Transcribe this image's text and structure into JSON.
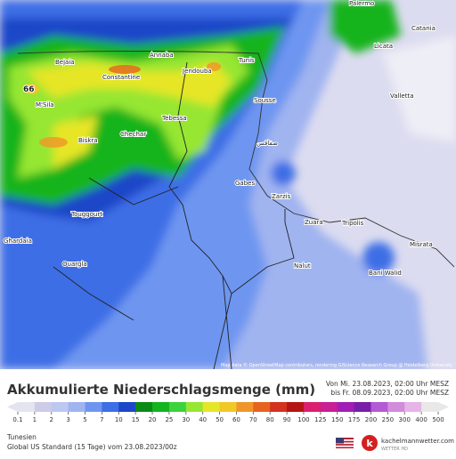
{
  "map": {
    "places": [
      "Palermo",
      "Catania",
      "Licata",
      "Valletta",
      "Annaba",
      "Bejaia",
      "Constantine",
      "Jendouba",
      "Tunis",
      "M'Sila",
      "Sousse",
      "Tebessa",
      "Biskra",
      "Chechar",
      "صفاقس",
      "Gabes",
      "Zarzis",
      "Zuara",
      "Tripolis",
      "Misrata",
      "Bani Walid",
      "Touggourt",
      "Ghardaia",
      "Ouargla",
      "Nalut"
    ],
    "max_value_label": "66",
    "attribution": "Map data © OpenStreetMap contributors, rendering GIScience Research Group @ Heidelberg University"
  },
  "legend": {
    "title": "Akkumulierte Niederschlagsmenge (mm)",
    "from": "Von Mi. 23.08.2023, 02:00 Uhr MESZ",
    "to": "bis Fr. 08.09.2023, 02:00 Uhr MESZ",
    "ticks": [
      0.1,
      1,
      2,
      3,
      5,
      7,
      10,
      15,
      20,
      25,
      30,
      40,
      50,
      60,
      70,
      80,
      90,
      100,
      125,
      150,
      175,
      200,
      250,
      300,
      400,
      500
    ],
    "colors": [
      "#e4e4ee",
      "#cccce8",
      "#bcc8f0",
      "#a0b4f0",
      "#6e96f0",
      "#3c6ee6",
      "#1e46c8",
      "#0a8c14",
      "#14b41e",
      "#3cd23c",
      "#96e632",
      "#e6e628",
      "#f0c828",
      "#f09628",
      "#e6641e",
      "#d2321e",
      "#b41414",
      "#dc1e6e",
      "#c81e96",
      "#a01eb4",
      "#781eaa",
      "#b45ad2",
      "#d28cdc",
      "#e6b4e6",
      "#e8e8e8"
    ]
  },
  "footer": {
    "region": "Tunesien",
    "model": "Global US Standard (15 Tage) vom 23.08.2023/00z",
    "brand": "kachelmannwetter.com",
    "brand_sub": "WETTER HD"
  }
}
